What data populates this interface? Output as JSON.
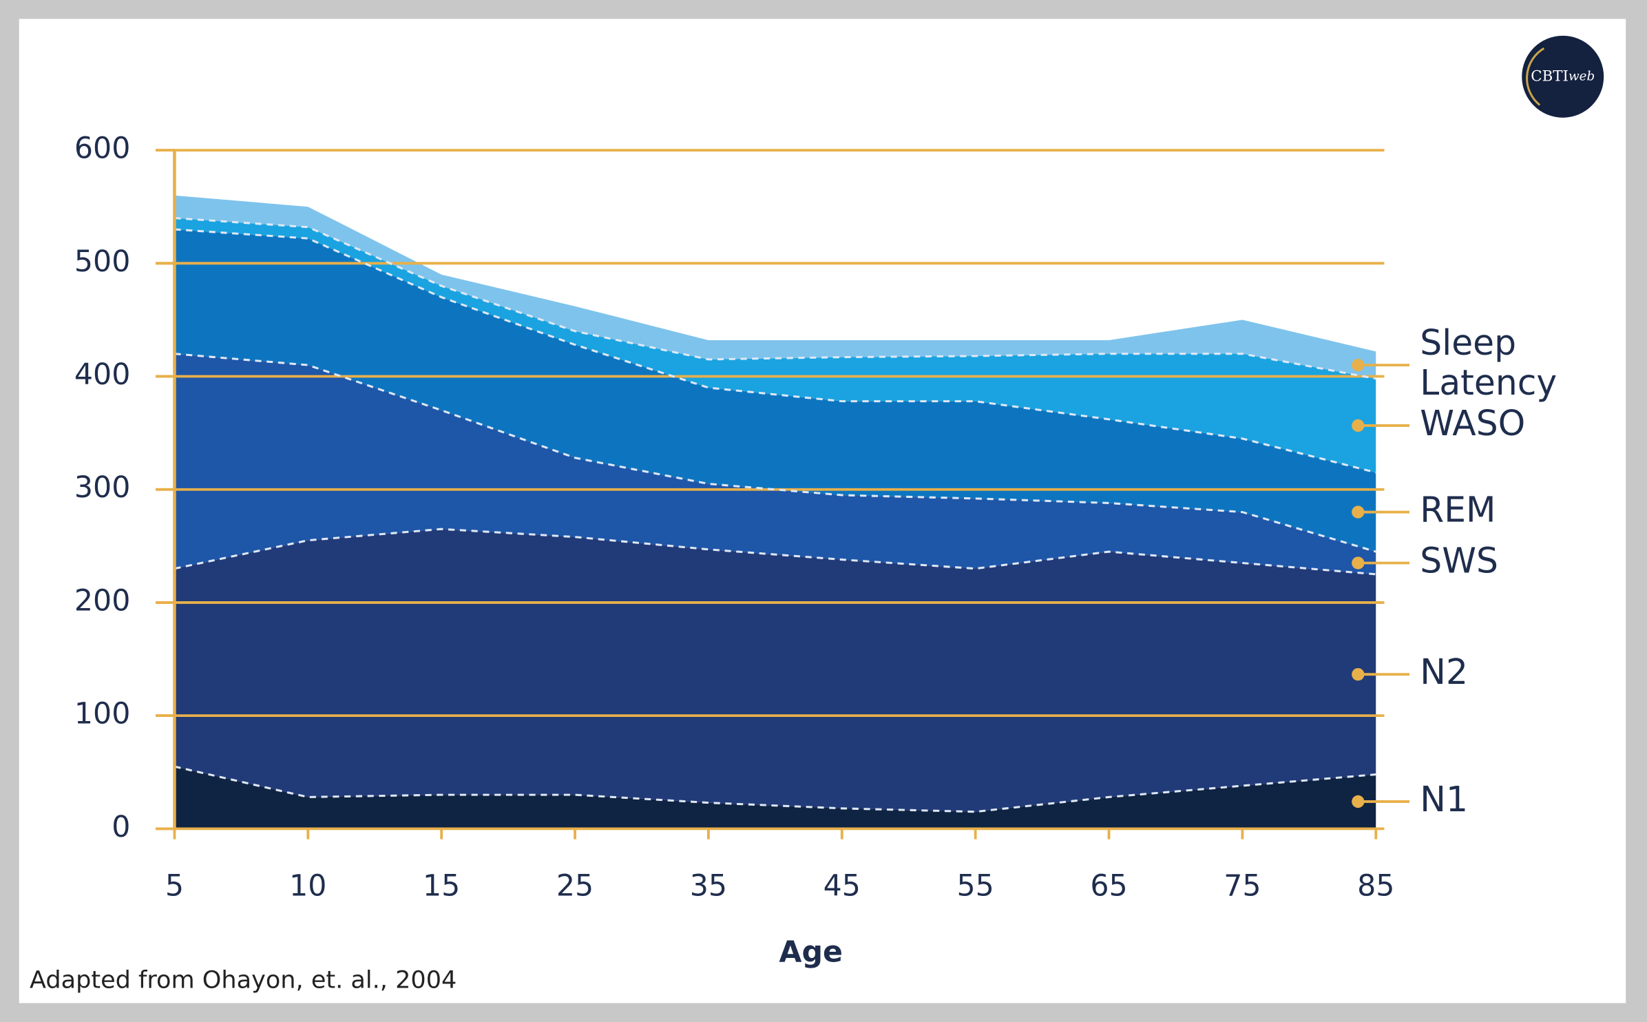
{
  "chart_data": {
    "type": "stacked_area",
    "xlabel": "Age",
    "note": "Adapted from Ohayon, et. al., 2004",
    "logo": [
      "CBTI",
      "web"
    ],
    "categories": [
      "5",
      "10",
      "15",
      "25",
      "35",
      "45",
      "55",
      "65",
      "75",
      "85"
    ],
    "ylim": [
      0,
      600
    ],
    "yticks": [
      0,
      100,
      200,
      300,
      400,
      500,
      600
    ],
    "grid": true,
    "grid_color": "#e8b04a",
    "series": [
      {
        "name": "N1",
        "color": "#0f2342",
        "values": [
          55,
          28,
          30,
          30,
          23,
          18,
          15,
          28,
          38,
          48
        ]
      },
      {
        "name": "N2",
        "color": "#213a78",
        "values": [
          175,
          227,
          235,
          228,
          224,
          220,
          215,
          217,
          197,
          177
        ]
      },
      {
        "name": "SWS",
        "color": "#1e56a8",
        "values": [
          190,
          155,
          105,
          70,
          58,
          57,
          62,
          43,
          45,
          20
        ]
      },
      {
        "name": "REM",
        "color": "#0d75c0",
        "values": [
          110,
          112,
          100,
          100,
          85,
          83,
          86,
          74,
          65,
          70
        ]
      },
      {
        "name": "WASO",
        "color": "#1aa3e0",
        "values": [
          10,
          10,
          10,
          12,
          25,
          39,
          40,
          58,
          75,
          83
        ]
      },
      {
        "name": "Sleep Latency",
        "color": "#7ec3ec",
        "values": [
          20,
          18,
          10,
          22,
          17,
          15,
          14,
          12,
          30,
          24
        ]
      }
    ]
  }
}
